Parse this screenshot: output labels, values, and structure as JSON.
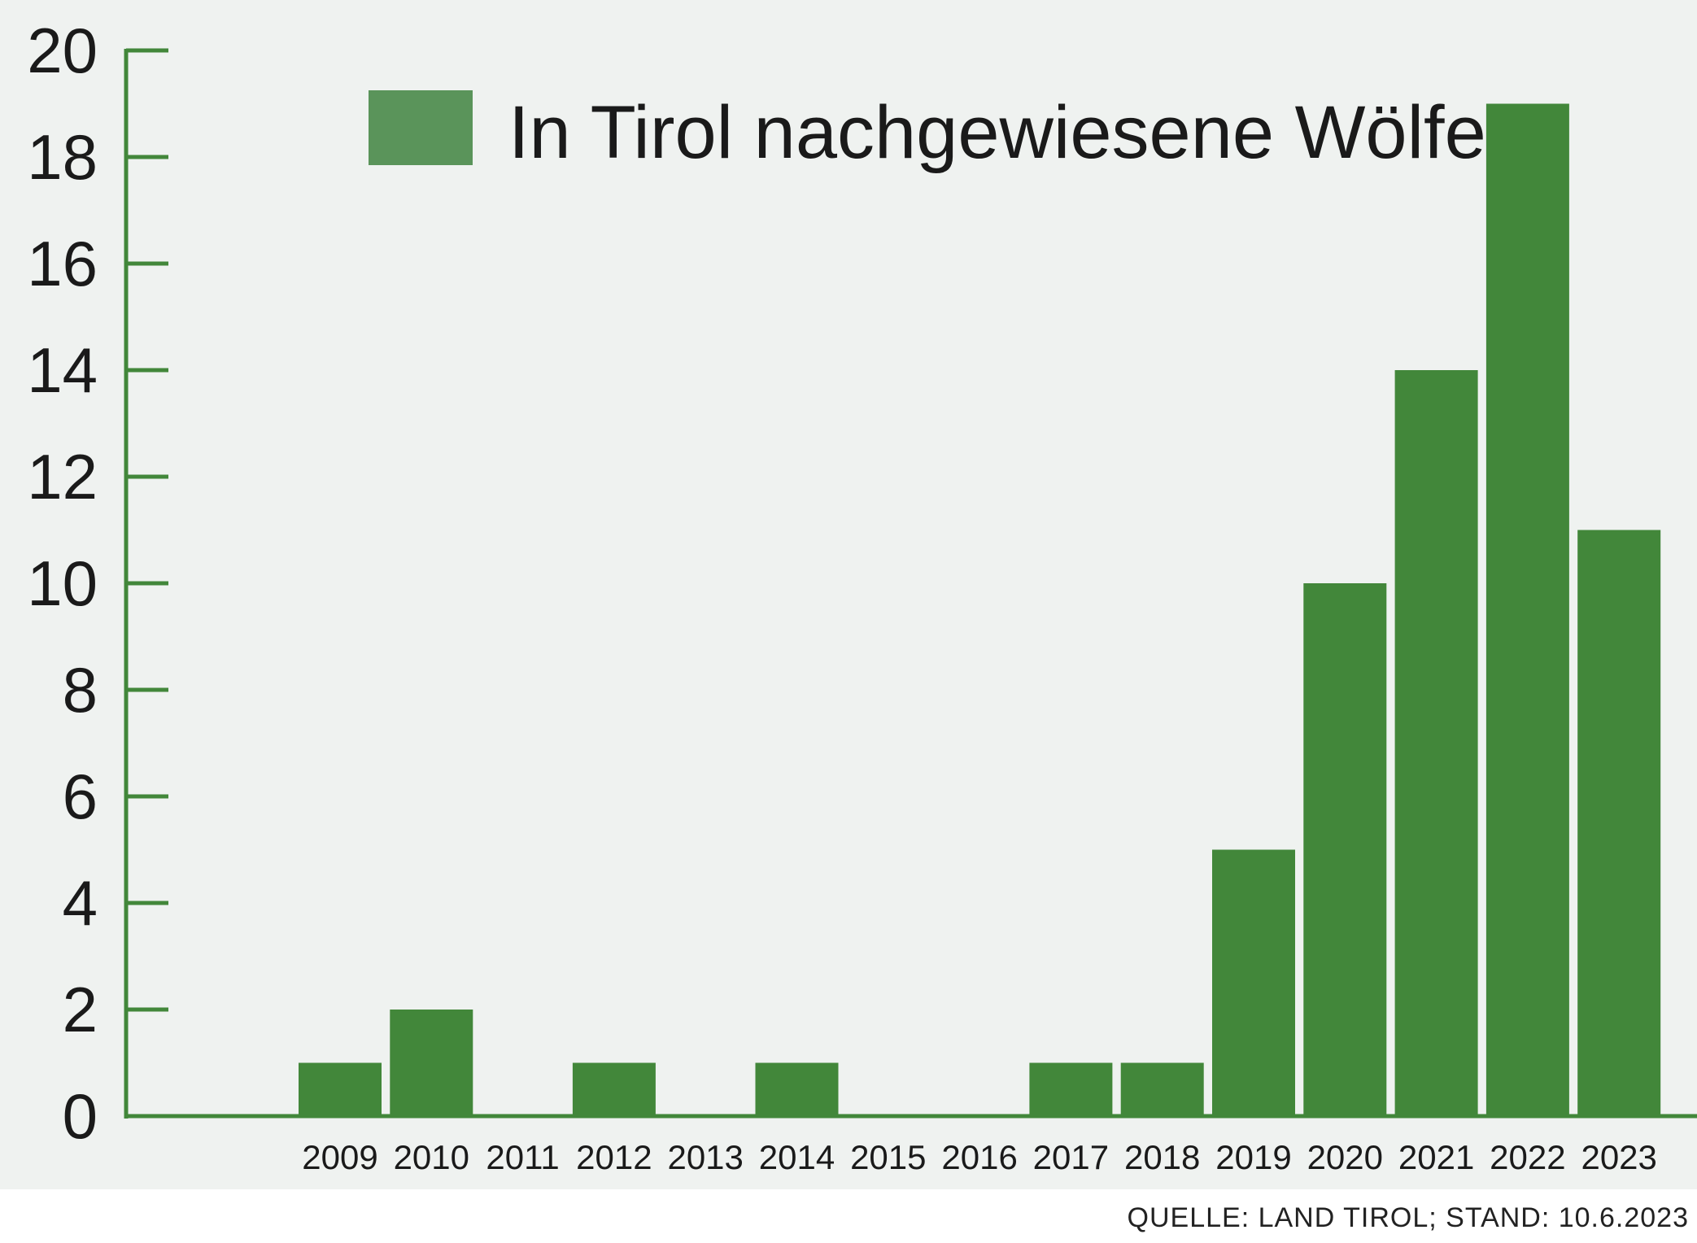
{
  "chart_data": {
    "type": "bar",
    "categories": [
      "2009",
      "2010",
      "2011",
      "2012",
      "2013",
      "2014",
      "2015",
      "2016",
      "2017",
      "2018",
      "2019",
      "2020",
      "2021",
      "2022",
      "2023"
    ],
    "series": [
      {
        "name": "In Tirol nachgewiesene Wölfe",
        "values": [
          1,
          2,
          0,
          1,
          0,
          1,
          0,
          0,
          1,
          1,
          5,
          10,
          14,
          19,
          11
        ]
      }
    ],
    "yticks": [
      "0",
      "2",
      "4",
      "6",
      "8",
      "10",
      "12",
      "14",
      "16",
      "18",
      "20"
    ],
    "ylim": [
      0,
      20
    ],
    "legend": "top-center",
    "grid": false,
    "colors": {
      "bar": "#42873a",
      "legend_swatch": "#5a945a",
      "axis": "#42873a",
      "background": "#eff2f0"
    }
  },
  "source": "QUELLE: LAND TIROL; STAND: 10.6.2023"
}
